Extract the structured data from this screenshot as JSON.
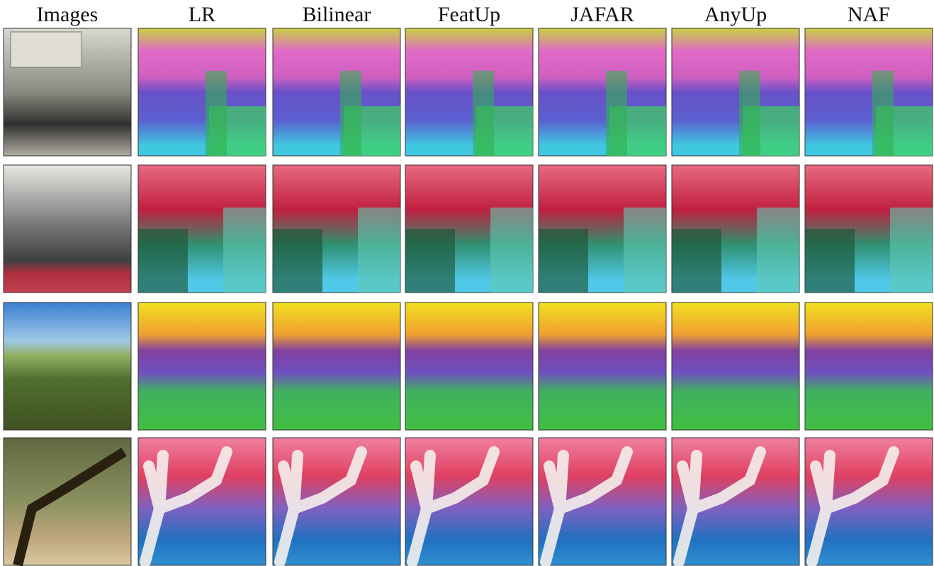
{
  "columns": [
    "Images",
    "LR",
    "Bilinear",
    "FeatUp",
    "JAFAR",
    "AnyUp",
    "NAF"
  ]
}
